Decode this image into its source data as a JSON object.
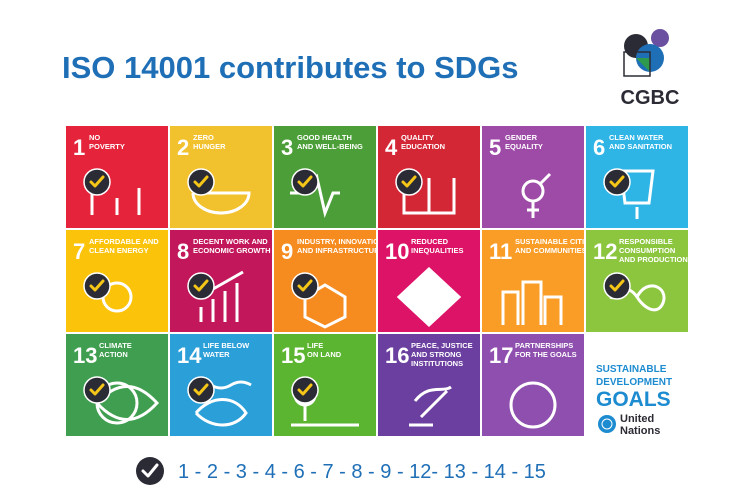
{
  "header": {
    "title": "ISO 14001 contributes to SDGs",
    "logo": "CGBC"
  },
  "tiles": [
    {
      "number": "1",
      "label": [
        "NO",
        "POVERTY"
      ],
      "color": "#e5243b",
      "checked": true
    },
    {
      "number": "2",
      "label": [
        "ZERO",
        "HUNGER"
      ],
      "color": "#f2c12e",
      "checked": true
    },
    {
      "number": "3",
      "label": [
        "GOOD HEALTH",
        "AND WELL-BEING"
      ],
      "color": "#4c9f38",
      "checked": true
    },
    {
      "number": "4",
      "label": [
        "QUALITY",
        "EDUCATION"
      ],
      "color": "#d32735",
      "checked": true
    },
    {
      "number": "5",
      "label": [
        "GENDER",
        "EQUALITY"
      ],
      "color": "#9d4ba6",
      "checked": false
    },
    {
      "number": "6",
      "label": [
        "CLEAN WATER",
        "AND SANITATION"
      ],
      "color": "#2fb4e6",
      "checked": true
    },
    {
      "number": "7",
      "label": [
        "AFFORDABLE AND",
        "CLEAN ENERGY"
      ],
      "color": "#fcc30b",
      "checked": true
    },
    {
      "number": "8",
      "label": [
        "DECENT WORK AND",
        "ECONOMIC GROWTH"
      ],
      "color": "#c2185b",
      "checked": true
    },
    {
      "number": "9",
      "label": [
        "INDUSTRY, INNOVATION",
        "AND INFRASTRUCTURE"
      ],
      "color": "#f68b1f",
      "checked": true
    },
    {
      "number": "10",
      "label": [
        "REDUCED",
        "INEQUALITIES"
      ],
      "color": "#dd1367",
      "checked": false
    },
    {
      "number": "11",
      "label": [
        "SUSTAINABLE CITIES",
        "AND COMMUNITIES"
      ],
      "color": "#f99d26",
      "checked": false
    },
    {
      "number": "12",
      "label": [
        "RESPONSIBLE",
        "CONSUMPTION",
        "AND PRODUCTION"
      ],
      "color": "#8cc63f",
      "checked": true
    },
    {
      "number": "13",
      "label": [
        "CLIMATE",
        "ACTION"
      ],
      "color": "#3f9e4f",
      "checked": true
    },
    {
      "number": "14",
      "label": [
        "LIFE BELOW",
        "WATER"
      ],
      "color": "#2a9fd8",
      "checked": true
    },
    {
      "number": "15",
      "label": [
        "LIFE",
        "ON LAND"
      ],
      "color": "#5cb531",
      "checked": true
    },
    {
      "number": "16",
      "label": [
        "PEACE, JUSTICE",
        "AND STRONG",
        "INSTITUTIONS"
      ],
      "color": "#6b3fa0",
      "checked": false
    },
    {
      "number": "17",
      "label": [
        "PARTNERSHIPS",
        "FOR THE GOALS"
      ],
      "color": "#8e4fae",
      "checked": false
    }
  ],
  "sdg_logo": {
    "line1": "SUSTAINABLE",
    "line2": "DEVELOPMENT",
    "line3": "GOALS",
    "un1": "United",
    "un2": "Nations"
  },
  "footer": {
    "goals": "1 - 2 - 3 - 4 - 6 - 7 - 8 - 9 - 12- 13 - 14 - 15"
  }
}
